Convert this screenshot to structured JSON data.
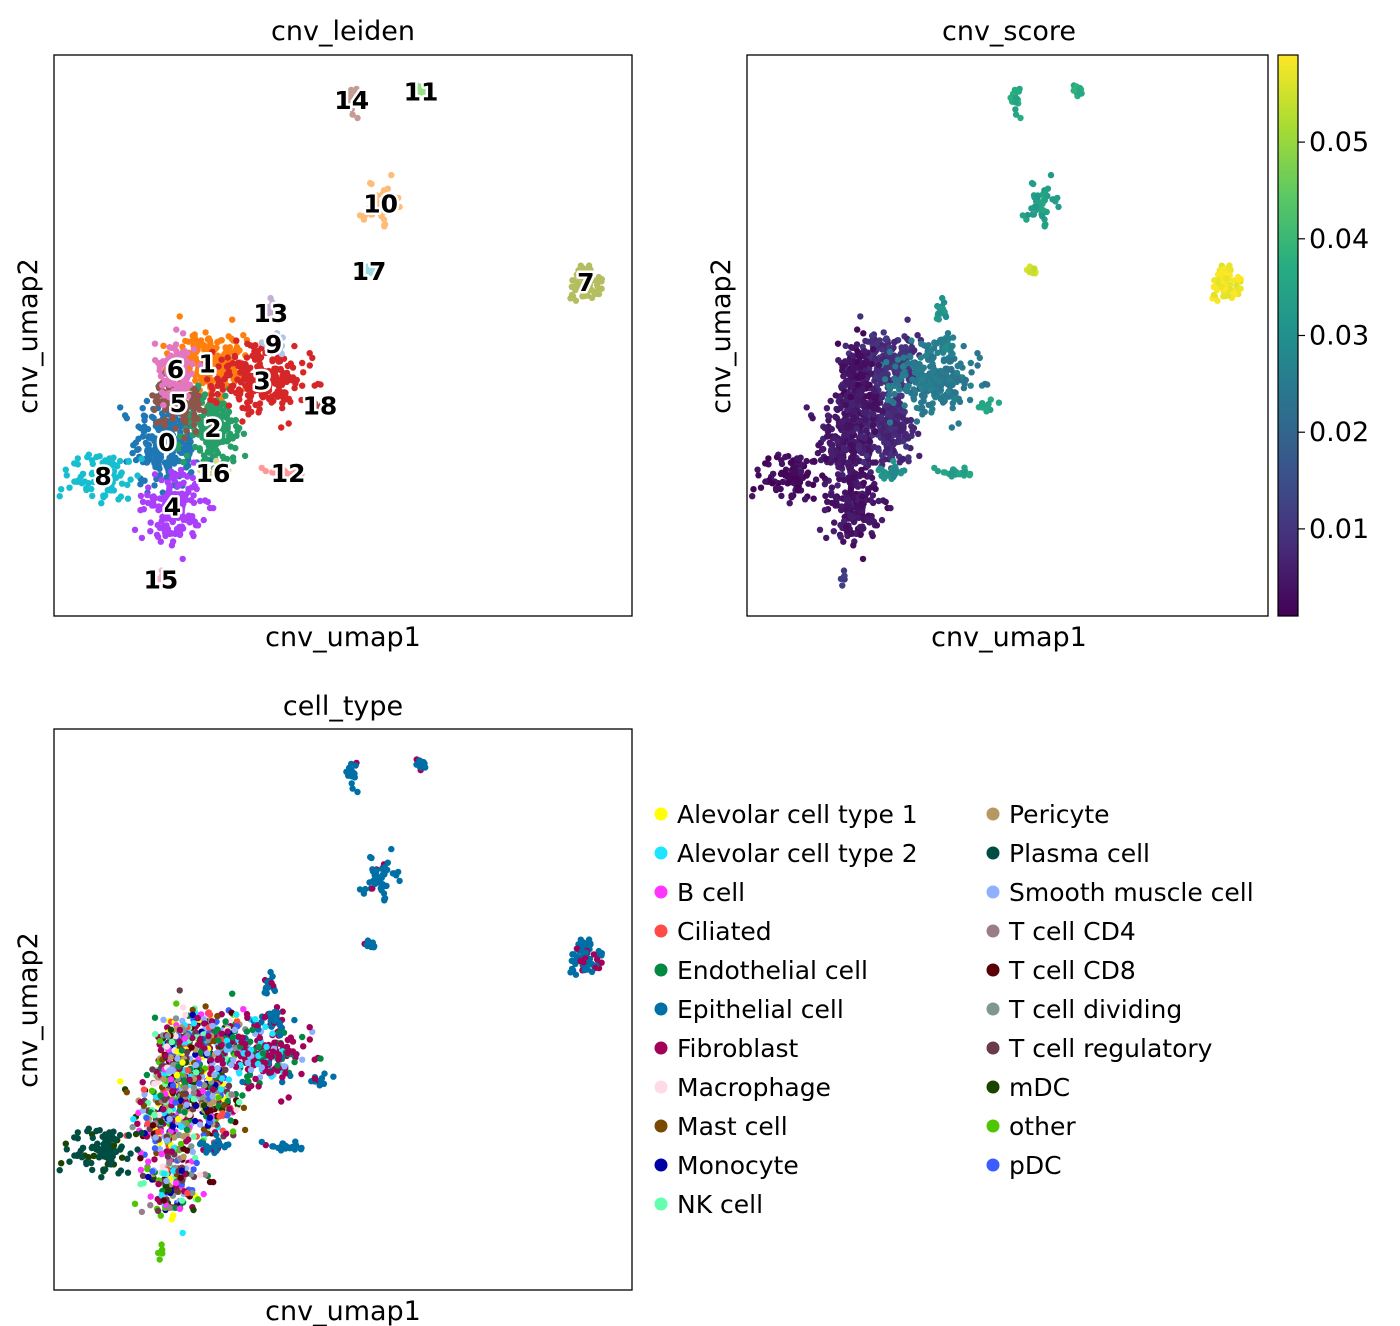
{
  "chart_data": [
    {
      "type": "scatter",
      "title": "cnv_leiden",
      "xlabel": "cnv_umap1",
      "ylabel": "cnv_umap2",
      "coloring": "categorical",
      "xlim": [
        0,
        100
      ],
      "ylim": [
        0,
        100
      ],
      "cluster_labels": [
        {
          "label": "0",
          "x": 19.5,
          "y": 31.0,
          "color": "#1f77b4"
        },
        {
          "label": "1",
          "x": 26.5,
          "y": 45.0,
          "color": "#ff7f0e"
        },
        {
          "label": "2",
          "x": 27.5,
          "y": 33.5,
          "color": "#279e68"
        },
        {
          "label": "3",
          "x": 36.0,
          "y": 42.0,
          "color": "#d62728"
        },
        {
          "label": "4",
          "x": 20.5,
          "y": 19.5,
          "color": "#aa40fc"
        },
        {
          "label": "5",
          "x": 21.5,
          "y": 38.0,
          "color": "#8c564b"
        },
        {
          "label": "6",
          "x": 21.0,
          "y": 44.0,
          "color": "#e377c2"
        },
        {
          "label": "7",
          "x": 92.0,
          "y": 59.5,
          "color": "#b5bd61"
        },
        {
          "label": "8",
          "x": 8.5,
          "y": 25.0,
          "color": "#17becf"
        },
        {
          "label": "9",
          "x": 38.0,
          "y": 48.5,
          "color": "#aec7e8"
        },
        {
          "label": "10",
          "x": 56.5,
          "y": 73.5,
          "color": "#ffbb78"
        },
        {
          "label": "11",
          "x": 63.5,
          "y": 93.5,
          "color": "#98df8a"
        },
        {
          "label": "12",
          "x": 40.5,
          "y": 25.5,
          "color": "#ff9896"
        },
        {
          "label": "13",
          "x": 37.5,
          "y": 54.0,
          "color": "#c5b0d5"
        },
        {
          "label": "14",
          "x": 51.5,
          "y": 92.0,
          "color": "#c49c94"
        },
        {
          "label": "15",
          "x": 18.5,
          "y": 6.5,
          "color": "#f7b6d2"
        },
        {
          "label": "16",
          "x": 27.5,
          "y": 25.5,
          "color": "#dbdb8d"
        },
        {
          "label": "17",
          "x": 54.5,
          "y": 61.5,
          "color": "#9edae5"
        },
        {
          "label": "18",
          "x": 46.0,
          "y": 37.5,
          "color": "#ad494a"
        }
      ]
    },
    {
      "type": "scatter",
      "title": "cnv_score",
      "xlabel": "cnv_umap1",
      "ylabel": "cnv_umap2",
      "coloring": "continuous",
      "colormap": "viridis",
      "xlim": [
        0,
        100
      ],
      "ylim": [
        0,
        100
      ],
      "colorbar": {
        "min": 0.001,
        "max": 0.059,
        "ticks": [
          0.01,
          0.02,
          0.03,
          0.04,
          0.05
        ],
        "tick_labels": [
          "0.01",
          "0.02",
          "0.03",
          "0.04",
          "0.05"
        ]
      }
    },
    {
      "type": "scatter",
      "title": "cell_type",
      "xlabel": "cnv_umap1",
      "ylabel": "cnv_umap2",
      "coloring": "categorical",
      "xlim": [
        0,
        100
      ],
      "ylim": [
        0,
        100
      ],
      "legend_placement": "right",
      "legend": [
        {
          "label": "Alevolar cell type 1",
          "color": "#ffff00"
        },
        {
          "label": "Alevolar cell type 2",
          "color": "#1ce6ff"
        },
        {
          "label": "B cell",
          "color": "#ff34ff"
        },
        {
          "label": "Ciliated",
          "color": "#ff4a46"
        },
        {
          "label": "Endothelial cell",
          "color": "#008941"
        },
        {
          "label": "Epithelial cell",
          "color": "#006fa6"
        },
        {
          "label": "Fibroblast",
          "color": "#a30059"
        },
        {
          "label": "Macrophage",
          "color": "#ffdbe5"
        },
        {
          "label": "Mast cell",
          "color": "#7a4900"
        },
        {
          "label": "Monocyte",
          "color": "#0000a6"
        },
        {
          "label": "NK cell",
          "color": "#63ffac"
        },
        {
          "label": "Pericyte",
          "color": "#b79762"
        },
        {
          "label": "Plasma cell",
          "color": "#004d43"
        },
        {
          "label": "Smooth muscle cell",
          "color": "#8fb0ff"
        },
        {
          "label": "T cell CD4",
          "color": "#997d87"
        },
        {
          "label": "T cell CD8",
          "color": "#5a0007"
        },
        {
          "label": "T cell dividing",
          "color": "#809693"
        },
        {
          "label": "T cell regulatory",
          "color": "#6a3a4c"
        },
        {
          "label": "mDC",
          "color": "#1b4400"
        },
        {
          "label": "other",
          "color": "#4fc601"
        },
        {
          "label": "pDC",
          "color": "#3b5dff"
        }
      ]
    }
  ]
}
